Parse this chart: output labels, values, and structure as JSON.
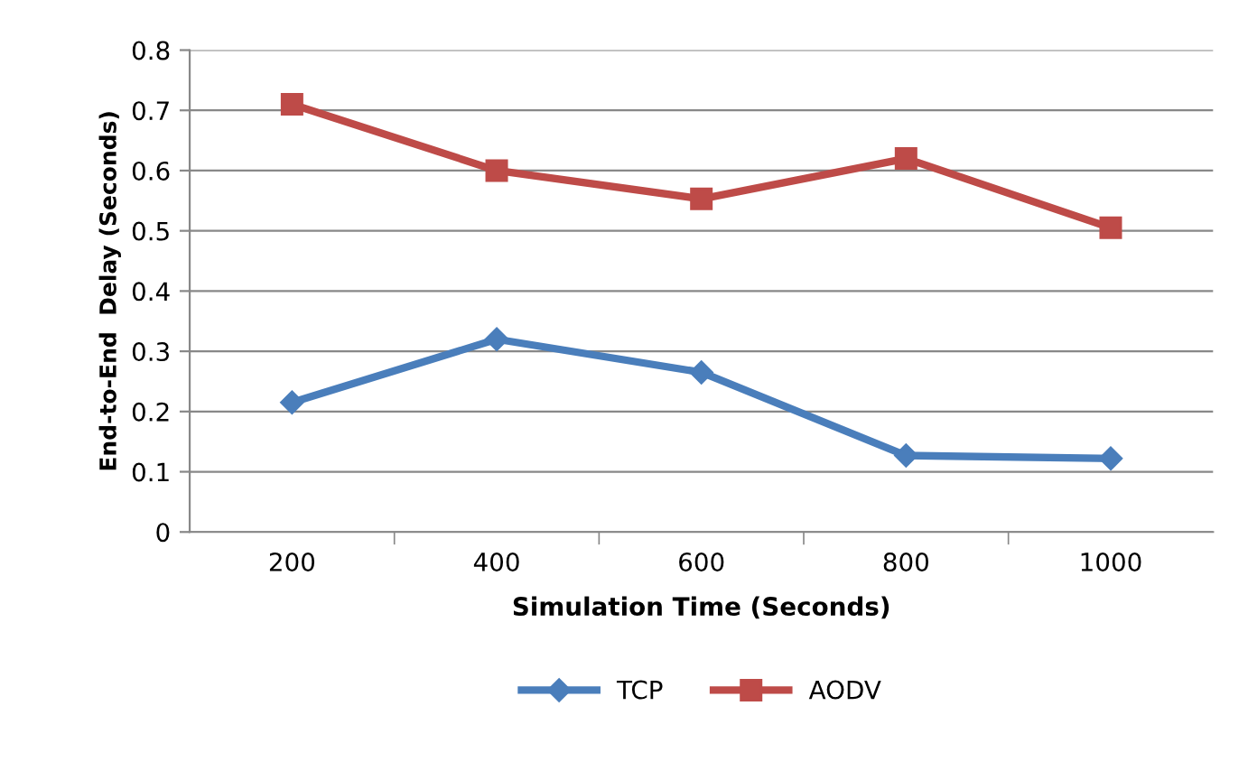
{
  "chart_data": {
    "type": "line",
    "xlabel": "Simulation Time (Seconds)",
    "ylabel": "End-to-End  Delay (Seconds)",
    "categories": [
      "200",
      "400",
      "600",
      "800",
      "1000"
    ],
    "series": [
      {
        "name": "TCP",
        "color": "#4a7ebb",
        "marker": "diamond",
        "values": [
          0.215,
          0.32,
          0.265,
          0.127,
          0.122
        ]
      },
      {
        "name": "AODV",
        "color": "#be4b48",
        "marker": "square",
        "values": [
          0.71,
          0.6,
          0.553,
          0.62,
          0.505
        ]
      }
    ],
    "ylim": [
      0,
      0.8
    ],
    "yticks": [
      0,
      0.1,
      0.2,
      0.3,
      0.4,
      0.5,
      0.6,
      0.7,
      0.8
    ],
    "grid": "y",
    "legend": "bottom"
  }
}
